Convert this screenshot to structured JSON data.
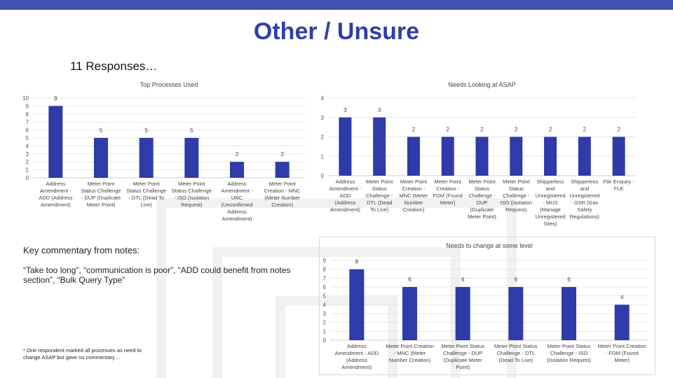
{
  "page": {
    "title": "Other / Unsure",
    "subtitle": "11 Responses…",
    "notes_heading": "Key commentary from notes:",
    "notes_body": "“Take too long”, “communication is poor”, “ADD could benefit from notes section”, “Bulk Query Type”",
    "footnote": "* One respondent marked all processes as need to change ASAP but gave no commentary…"
  },
  "colors": {
    "bar": "#2e3ba8",
    "title": "#2f3fa6",
    "topbar": "#3f51b5",
    "grid": "#e6e6e6"
  },
  "chart_data": [
    {
      "type": "bar",
      "title": "Top Processes Used",
      "categories": [
        [
          "Address",
          "Amendment -",
          "ADD (Address",
          "Amendment)"
        ],
        [
          "Meter Point",
          "Status Challenge",
          "- DUP (Duplicate",
          "Meter Point)"
        ],
        [
          "Meter Point",
          "Status Challenge",
          "- DTL (Dead To",
          "Live)"
        ],
        [
          "Meter Point",
          "Status Challenge",
          "- ISO (Isolation",
          "Request)"
        ],
        [
          "Address",
          "Amendment -",
          "UNC",
          "(Unconfirmed",
          "Address",
          "Amendment)"
        ],
        [
          "Meter Point",
          "Creation - MNC",
          "(Meter Number",
          "Creation)"
        ]
      ],
      "values": [
        9,
        5,
        5,
        5,
        2,
        2
      ],
      "yticks": [
        0,
        1,
        2,
        3,
        4,
        5,
        6,
        7,
        8,
        9,
        10
      ],
      "ylim": [
        0,
        10
      ],
      "grid": true
    },
    {
      "type": "bar",
      "title": "Needs Looking at ASAP",
      "categories": [
        [
          "Address",
          "Amendment -",
          "ADD",
          "(Address",
          "Amendment)"
        ],
        [
          "Meter Point",
          "Status",
          "Challenge -",
          "DTL (Dead",
          "To Live)"
        ],
        [
          "Meter Point",
          "Creation -",
          "MNC (Meter",
          "Number",
          "Creation)"
        ],
        [
          "Meter Point",
          "Creation -",
          "FOM (Found",
          "Meter)"
        ],
        [
          "Meter Point",
          "Status",
          "Challenge -",
          "DUP",
          "(Duplicate",
          "Meter Point)"
        ],
        [
          "Meter Point",
          "Status",
          "Challenge -",
          "ISO (Isolation",
          "Request)"
        ],
        [
          "Shipperless",
          "and",
          "Unregistered",
          "- MUS",
          "(Manage",
          "Unregistered",
          "Sites)"
        ],
        [
          "Shipperless",
          "and",
          "Unregistered",
          "- GSR (Gas",
          "Safety",
          "Regulations)"
        ],
        [
          "File Enquiry -",
          "FLE"
        ]
      ],
      "values": [
        3,
        3,
        2,
        2,
        2,
        2,
        2,
        2,
        2
      ],
      "yticks": [
        0,
        1,
        2,
        3,
        4
      ],
      "ylim": [
        0,
        4
      ],
      "grid": true
    },
    {
      "type": "bar",
      "title": "Needs to change at some level",
      "categories": [
        [
          "Address",
          "Amendment - ADD",
          "(Address",
          "Amendment)"
        ],
        [
          "Meter Point Creation",
          "- MNC (Meter",
          "Number Creation)"
        ],
        [
          "Meter Point Status",
          "Challenge - DUP",
          "(Duplicate Meter",
          "Point)"
        ],
        [
          "Meter Point Status",
          "Challenge - DTL",
          "(Dead To Live)"
        ],
        [
          "Meter Point Status",
          "Challenge - ISO",
          "(Isolation Request)"
        ],
        [
          "Meter Point Creation",
          "- FOM (Found",
          "Meter)"
        ]
      ],
      "values": [
        8,
        6,
        6,
        6,
        6,
        4
      ],
      "yticks": [
        0,
        1,
        2,
        3,
        4,
        5,
        6,
        7,
        8,
        9
      ],
      "ylim": [
        0,
        9
      ],
      "grid": true
    }
  ]
}
